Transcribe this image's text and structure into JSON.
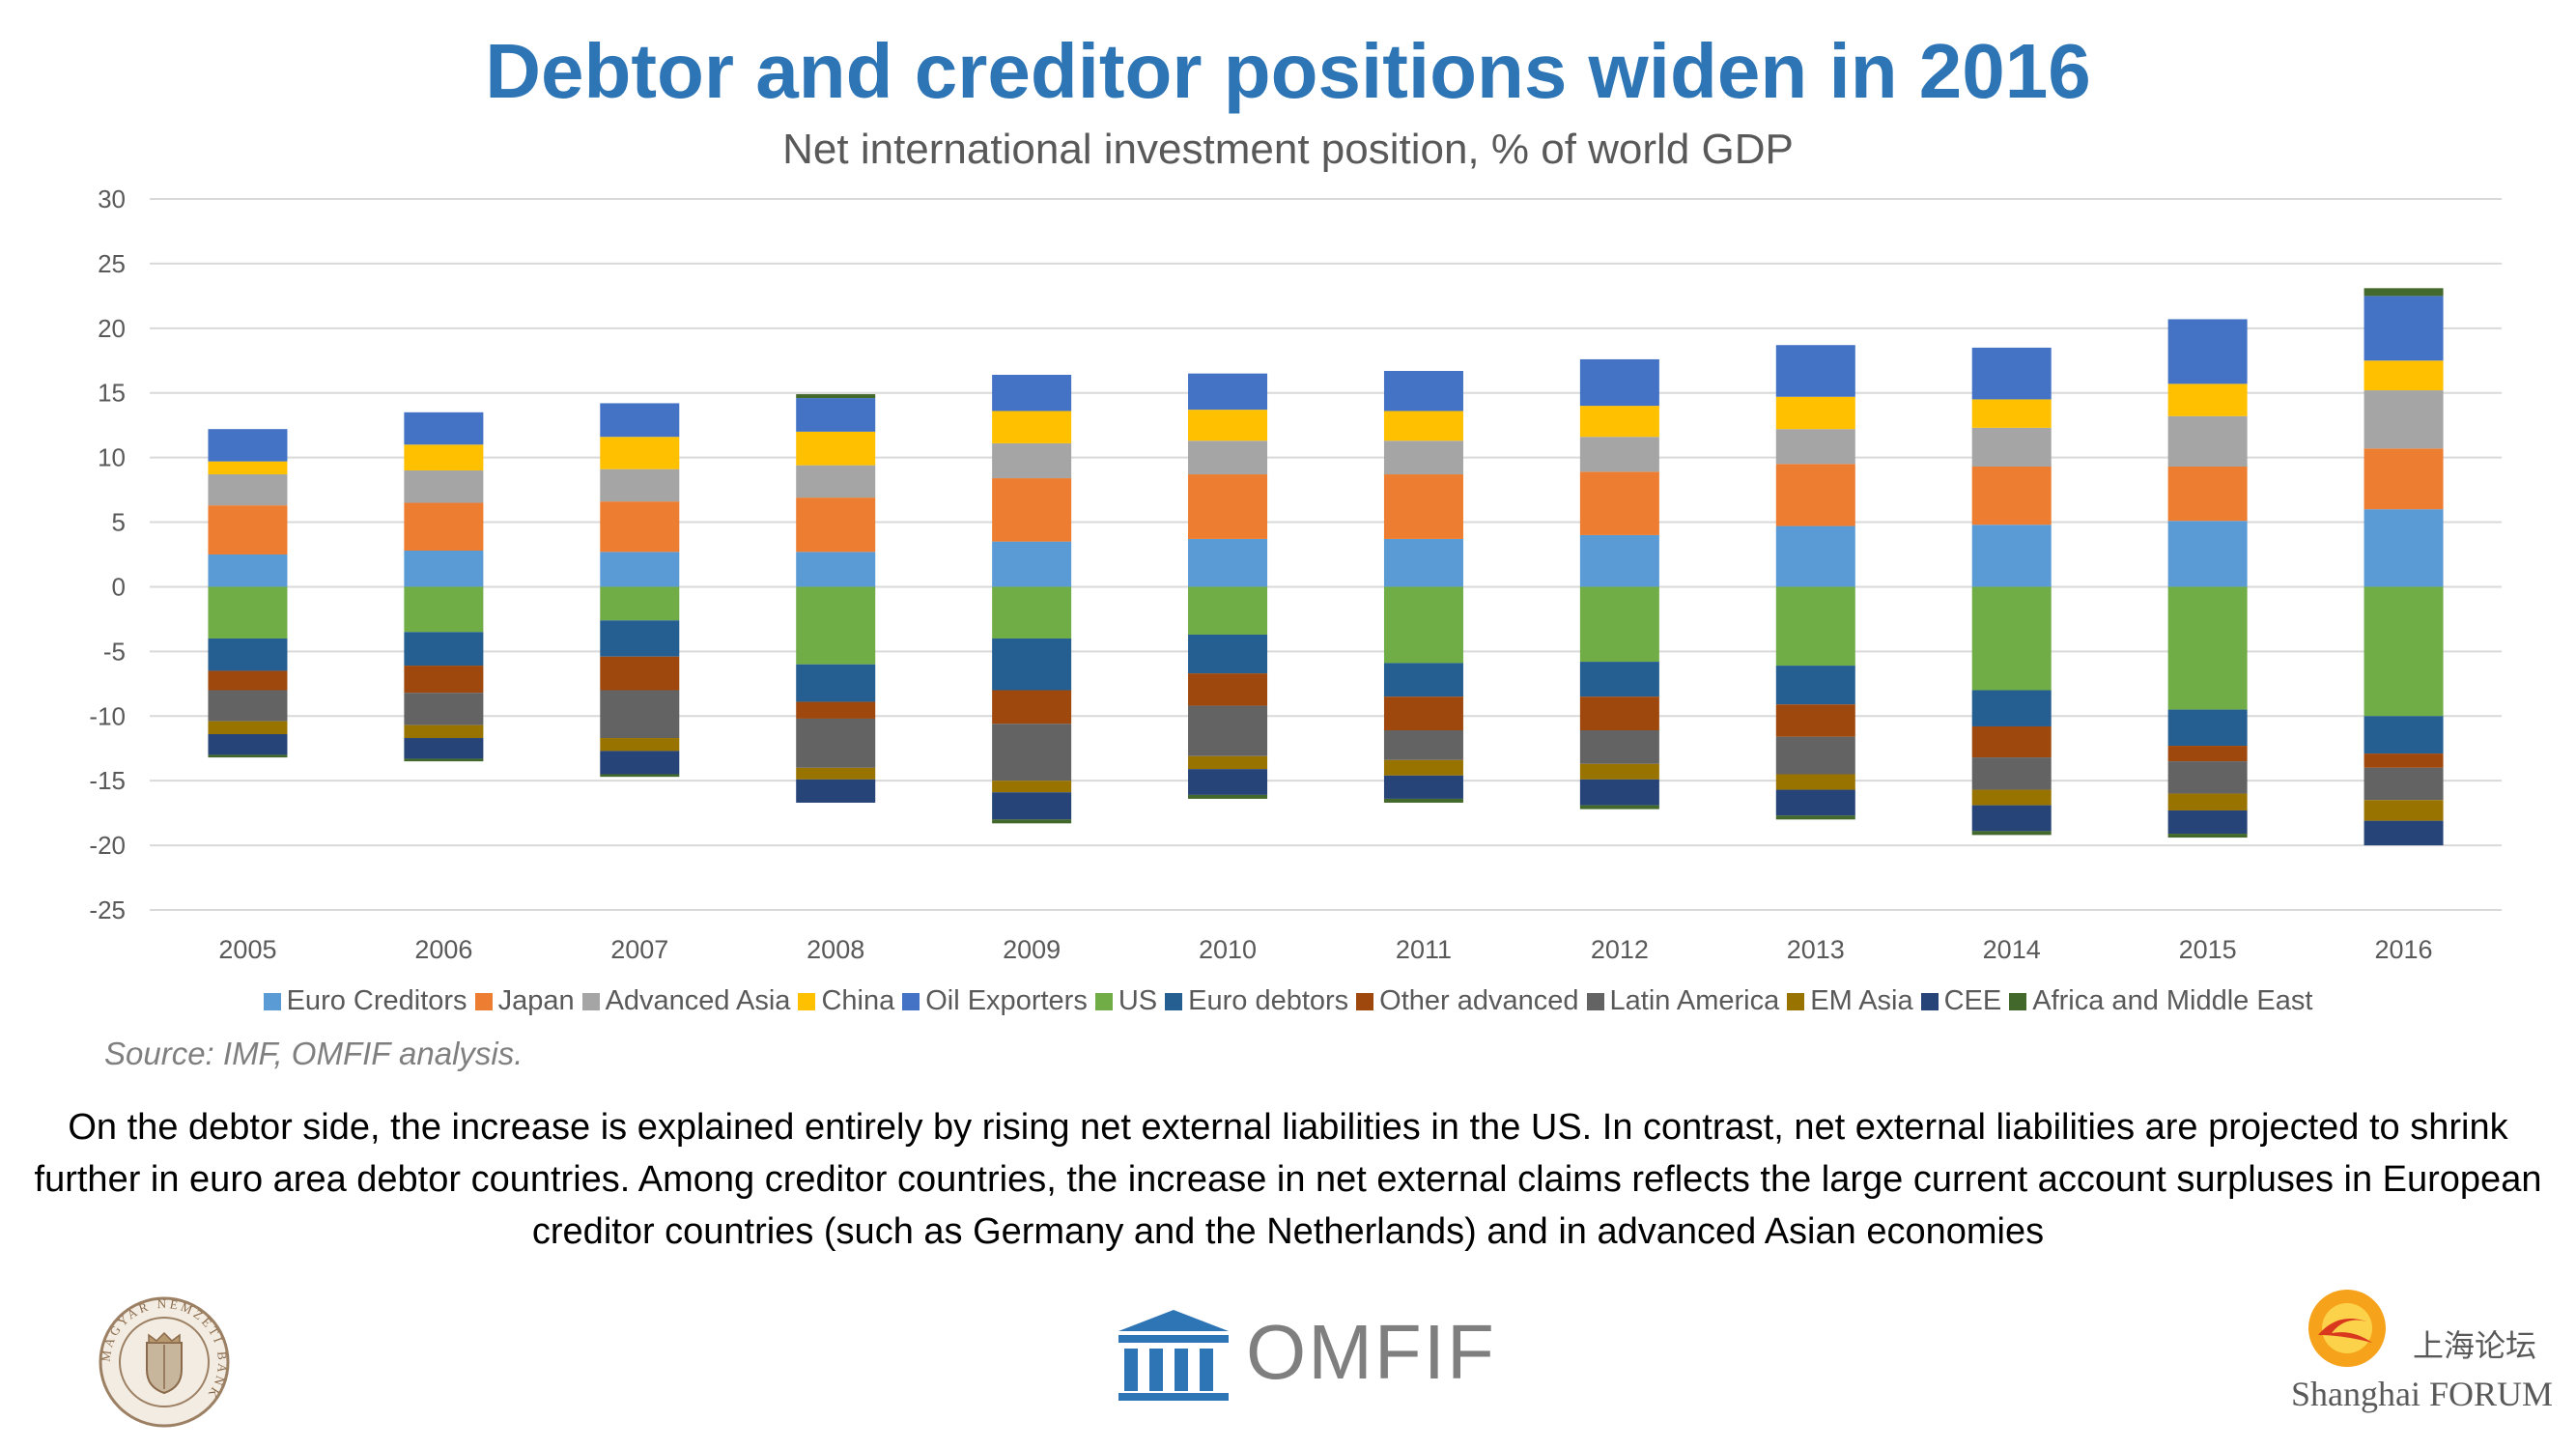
{
  "title": "Debtor and creditor positions widen in 2016",
  "subtitle": "Net international investment position, % of  world GDP",
  "source": "Source: IMF, OMFIF analysis.",
  "caption": "On the debtor side, the increase is explained entirely by rising net external liabilities in the US. In contrast, net external liabilities are projected to shrink further in euro area debtor countries. Among creditor countries, the increase in net external claims reflects the large current account surpluses in European creditor countries (such as Germany and the Netherlands) and in advanced Asian economies",
  "logos": {
    "omfif": "OMFIF",
    "shanghai_cn": "上海论坛",
    "shanghai_en": "Shanghai FORUM",
    "mnb_ring_text": "MAGYAR NEMZETI BANK"
  },
  "chart_data": {
    "type": "bar",
    "stacked": true,
    "categories": [
      "2005",
      "2006",
      "2007",
      "2008",
      "2009",
      "2010",
      "2011",
      "2012",
      "2013",
      "2014",
      "2015",
      "2016"
    ],
    "ylim": [
      -25,
      30
    ],
    "yticks": [
      30,
      25,
      20,
      15,
      10,
      5,
      0,
      -5,
      -10,
      -15,
      -20,
      -25
    ],
    "grid": true,
    "legend_position": "bottom",
    "series": [
      {
        "name": "Euro Creditors",
        "color": "#5b9bd5",
        "values": [
          2.5,
          2.8,
          2.7,
          2.7,
          3.5,
          3.7,
          3.7,
          4.0,
          4.7,
          4.8,
          5.1,
          6.0
        ]
      },
      {
        "name": "Japan",
        "color": "#ed7d31",
        "values": [
          3.8,
          3.7,
          3.9,
          4.2,
          4.9,
          5.0,
          5.0,
          4.9,
          4.8,
          4.5,
          4.2,
          4.7
        ]
      },
      {
        "name": "Advanced Asia",
        "color": "#a5a5a5",
        "values": [
          2.4,
          2.5,
          2.5,
          2.5,
          2.7,
          2.6,
          2.6,
          2.7,
          2.7,
          3.0,
          3.9,
          4.5
        ]
      },
      {
        "name": "China",
        "color": "#ffc000",
        "values": [
          1.0,
          2.0,
          2.5,
          2.6,
          2.5,
          2.4,
          2.3,
          2.4,
          2.5,
          2.2,
          2.5,
          2.3
        ]
      },
      {
        "name": "Oil Exporters",
        "color": "#4472c4",
        "values": [
          2.5,
          2.5,
          2.6,
          2.6,
          2.8,
          2.8,
          3.1,
          3.6,
          4.0,
          4.0,
          5.0,
          5.0
        ]
      },
      {
        "name": "US",
        "color": "#70ad47",
        "values": [
          -4.0,
          -3.5,
          -2.6,
          -6.0,
          -4.0,
          -3.7,
          -5.9,
          -5.8,
          -6.1,
          -8.0,
          -9.5,
          -10.0
        ]
      },
      {
        "name": "Euro debtors",
        "color": "#255e91",
        "values": [
          -2.5,
          -2.6,
          -2.8,
          -2.9,
          -4.0,
          -3.0,
          -2.6,
          -2.7,
          -3.0,
          -2.8,
          -2.8,
          -2.9
        ]
      },
      {
        "name": "Other advanced",
        "color": "#9e480e",
        "values": [
          -1.5,
          -2.1,
          -2.6,
          -1.3,
          -2.6,
          -2.5,
          -2.6,
          -2.6,
          -2.5,
          -2.4,
          -1.2,
          -1.1
        ]
      },
      {
        "name": "Latin America",
        "color": "#636363",
        "values": [
          -2.4,
          -2.5,
          -3.7,
          -3.8,
          -4.4,
          -3.9,
          -2.3,
          -2.6,
          -2.9,
          -2.5,
          -2.5,
          -2.5
        ]
      },
      {
        "name": "EM Asia",
        "color": "#997300",
        "values": [
          -1.0,
          -1.0,
          -1.0,
          -0.9,
          -0.9,
          -1.0,
          -1.2,
          -1.2,
          -1.2,
          -1.2,
          -1.3,
          -1.6
        ]
      },
      {
        "name": "CEE",
        "color": "#264478",
        "values": [
          -1.6,
          -1.6,
          -1.8,
          -1.8,
          -2.1,
          -2.0,
          -1.8,
          -2.0,
          -2.0,
          -2.0,
          -1.8,
          -1.9
        ]
      },
      {
        "name": "Africa and Middle East",
        "color": "#43682b",
        "values": [
          -0.2,
          -0.2,
          -0.2,
          0.3,
          -0.3,
          -0.3,
          -0.3,
          -0.3,
          -0.3,
          -0.3,
          -0.3,
          0.6
        ]
      }
    ]
  }
}
